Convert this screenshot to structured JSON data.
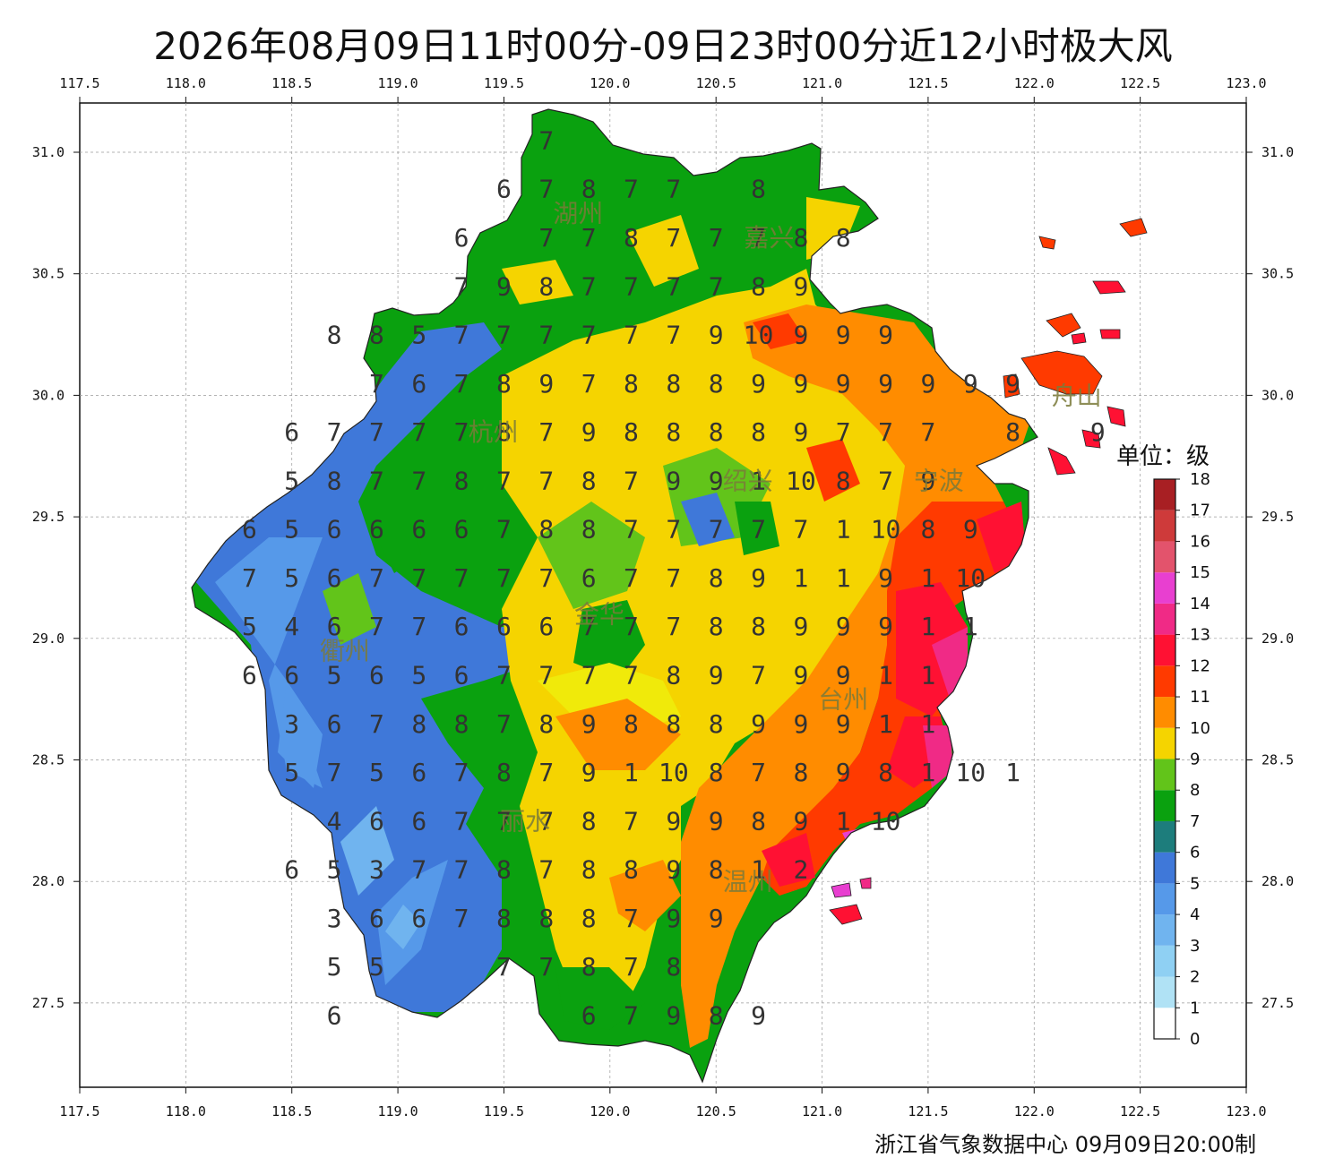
{
  "title": "2026年08月09日11时00分-09日23时00分近12小时极大风",
  "footer": "浙江省气象数据中心 09月09日20:00制",
  "axes": {
    "lon_ticks": [
      "117.5",
      "118.0",
      "118.5",
      "119.0",
      "119.5",
      "120.0",
      "120.5",
      "121.0",
      "121.5",
      "122.0",
      "122.5",
      "123.0"
    ],
    "lat_ticks": [
      "31.0",
      "30.5",
      "30.0",
      "29.5",
      "29.0",
      "28.5",
      "28.0",
      "27.5"
    ]
  },
  "legend": {
    "unit": "单位：级",
    "levels": [
      "0",
      "1",
      "2",
      "3",
      "4",
      "5",
      "6",
      "7",
      "8",
      "9",
      "10",
      "11",
      "12",
      "13",
      "14",
      "15",
      "16",
      "17",
      "18"
    ],
    "colors": [
      "#ffffff",
      "#b0e2f5",
      "#8fd0f3",
      "#70b4ef",
      "#5699e9",
      "#3f78d9",
      "#1d7d7c",
      "#0aa10f",
      "#62c41a",
      "#f5d400",
      "#ff8c00",
      "#ff3a00",
      "#ff1133",
      "#f02a86",
      "#e83fd0",
      "#e3536c",
      "#ce3a3a",
      "#a81f23",
      "#fbc8f8"
    ]
  },
  "cities": [
    {
      "name": "湖州",
      "lon": 119.85,
      "lat": 30.75
    },
    {
      "name": "嘉兴",
      "lon": 120.75,
      "lat": 30.65
    },
    {
      "name": "杭州",
      "lon": 119.45,
      "lat": 29.85
    },
    {
      "name": "绍兴",
      "lon": 120.65,
      "lat": 29.65
    },
    {
      "name": "宁波",
      "lon": 121.55,
      "lat": 29.65
    },
    {
      "name": "舟山",
      "lon": 122.2,
      "lat": 30.0
    },
    {
      "name": "金华",
      "lon": 119.95,
      "lat": 29.1
    },
    {
      "name": "衢州",
      "lon": 118.75,
      "lat": 28.95
    },
    {
      "name": "台州",
      "lon": 121.1,
      "lat": 28.75
    },
    {
      "name": "丽水",
      "lon": 119.6,
      "lat": 28.25
    },
    {
      "name": "温州",
      "lon": 120.65,
      "lat": 28.0
    }
  ],
  "map_numbers": {
    "lon_start": 118.3,
    "lat_start": 31.05,
    "lon_step": 0.2,
    "lat_step": 0.2,
    "rows": [
      "-------7-------------",
      "------67877-8--------",
      "-----6-77877788------",
      "-----798777789-------",
      "--88577777790999-----",
      "---7678978889999999--",
      "-6777787988889777-8-9",
      "-5877877879910879----",
      "656666788777771089---",
      "756777776778911910---",
      "546776667778899911---",
      "66565677778979911----",
      "-3678878988899911----",
      "-575678791087898101--",
      "--46677787998910-----",
      "-6537787889812-------",
      "--3667888799---------",
      "--55--77878----------",
      "--6-----67989--------"
    ]
  }
}
